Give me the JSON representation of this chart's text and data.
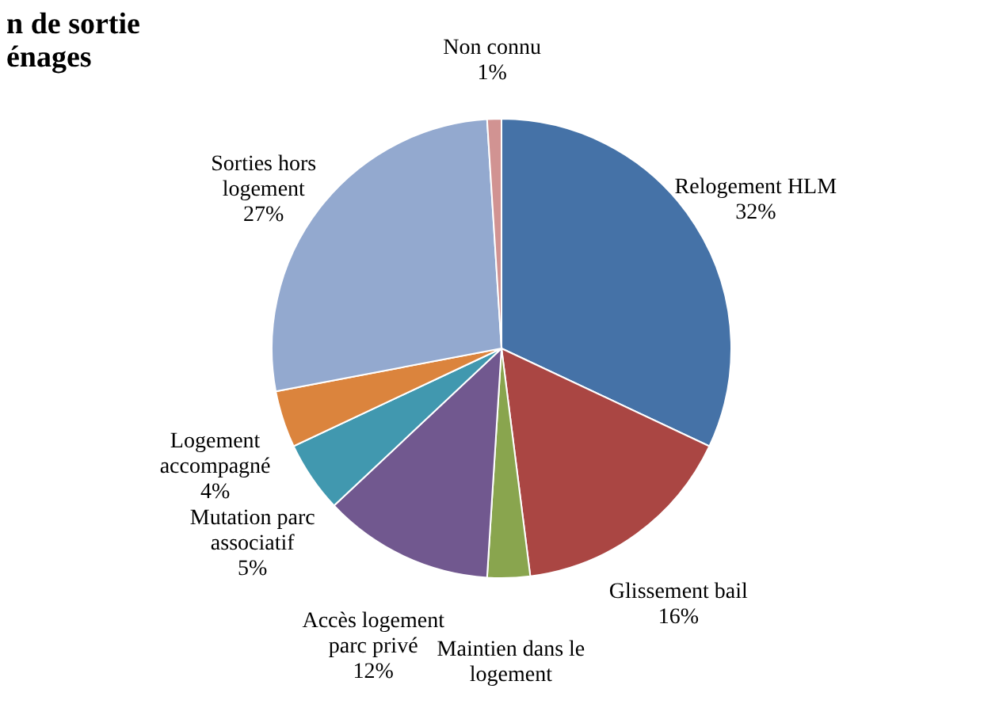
{
  "chart_data": {
    "type": "pie",
    "title": "n de sortie\nénages",
    "categories": [
      "Relogement HLM",
      "Glissement bail",
      "Maintien dans le logement",
      "Accès logement parc privé",
      "Mutation parc associatif",
      "Logement accompagné",
      "Sorties hors logement",
      "Non connu"
    ],
    "values": [
      32,
      16,
      3,
      12,
      5,
      4,
      27,
      1
    ],
    "value_labels": [
      "32%",
      "16%",
      null,
      "12%",
      "5%",
      "4%",
      "27%",
      "1%"
    ],
    "colors": [
      "#4572a7",
      "#aa4643",
      "#89a54e",
      "#71588f",
      "#4198af",
      "#db843d",
      "#93a9cf",
      "#d19392"
    ]
  }
}
